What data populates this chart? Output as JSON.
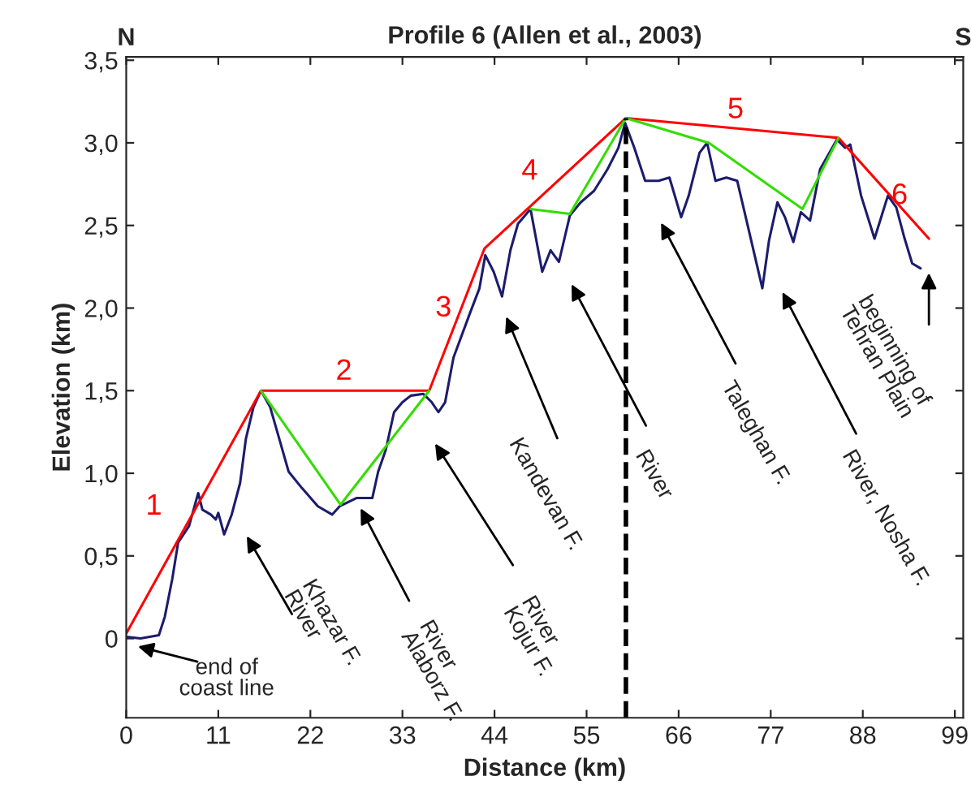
{
  "chart_data": {
    "type": "line",
    "title": "Profile 6 (Allen et al., 2003)",
    "xlabel": "Distance (km)",
    "ylabel": "Elevation (km)",
    "xlim": [
      0,
      100
    ],
    "ylim": [
      -0.48,
      3.52
    ],
    "xticks": [
      0,
      11,
      22,
      33,
      44,
      55,
      66,
      77,
      88,
      99
    ],
    "yticks": [
      0,
      {
        "value": 0.5,
        "label": "0,5"
      },
      {
        "value": 1.0,
        "label": "1,0"
      },
      {
        "value": 1.5,
        "label": "1,5"
      },
      {
        "value": 2.0,
        "label": "2,0"
      },
      {
        "value": 2.5,
        "label": "2,5"
      },
      {
        "value": 3.0,
        "label": "3,0"
      },
      {
        "value": 3.5,
        "label": "3,5"
      }
    ],
    "grid": false,
    "legend": false,
    "marker": "none",
    "series": [
      {
        "color": "#1c1c6e",
        "x": [
          0,
          1.7,
          3.9,
          4.6,
          5.5,
          6.2,
          7.5,
          8.6,
          9.1,
          10.1,
          10.7,
          11.0,
          11.7,
          12.6,
          13.6,
          14.3,
          15.2,
          16.1,
          17.2,
          18.5,
          19.4,
          21.0,
          22.9,
          24.6,
          25.5,
          27.5,
          29.4,
          30.1,
          31.0,
          32.0,
          33.0,
          34.0,
          35.5,
          36.5,
          37.3,
          38.1,
          39.1,
          41.0,
          42.2,
          42.9,
          43.9,
          44.9,
          45.9,
          46.8,
          48.3,
          49.7,
          50.7,
          51.7,
          53.0,
          54.3,
          55.9,
          57.5,
          58.8,
          59.6,
          60.7,
          62.0,
          63.6,
          64.9,
          66.3,
          67.2,
          68.5,
          69.4,
          70.4,
          71.7,
          73.0,
          74.2,
          76.0,
          76.8,
          77.8,
          78.7,
          79.7,
          80.6,
          81.7,
          82.9,
          84.9,
          85.9,
          86.5,
          87.8,
          89.4,
          91.0,
          92.0,
          93.0,
          93.9,
          94.9
        ],
        "values": [
          0.01,
          0.0,
          0.02,
          0.13,
          0.36,
          0.58,
          0.68,
          0.88,
          0.78,
          0.75,
          0.72,
          0.76,
          0.63,
          0.75,
          0.94,
          1.21,
          1.4,
          1.5,
          1.4,
          1.17,
          1.01,
          0.91,
          0.8,
          0.75,
          0.8,
          0.85,
          0.85,
          1.01,
          1.14,
          1.37,
          1.43,
          1.47,
          1.48,
          1.43,
          1.37,
          1.43,
          1.7,
          1.96,
          2.12,
          2.32,
          2.22,
          2.07,
          2.35,
          2.51,
          2.6,
          2.22,
          2.35,
          2.28,
          2.56,
          2.64,
          2.71,
          2.84,
          2.97,
          3.12,
          2.97,
          2.77,
          2.77,
          2.79,
          2.55,
          2.68,
          2.94,
          3.0,
          2.77,
          2.79,
          2.77,
          2.51,
          2.12,
          2.41,
          2.64,
          2.55,
          2.4,
          2.58,
          2.53,
          2.84,
          3.02,
          2.97,
          2.99,
          2.68,
          2.42,
          2.68,
          2.61,
          2.42,
          2.27,
          2.24
        ]
      },
      {
        "color": "#ff0000",
        "x": [
          0,
          16.1,
          36.2,
          42.8,
          59.7,
          85.1,
          95.9
        ],
        "values": [
          0.03,
          1.5,
          1.5,
          2.36,
          3.15,
          3.03,
          2.42
        ]
      },
      {
        "color": "#33dd00",
        "x": [
          16.1,
          25.6,
          36.2
        ],
        "values": [
          1.5,
          0.81,
          1.5
        ]
      },
      {
        "color": "#33dd00",
        "x": [
          48.3,
          53.0,
          59.7,
          69.6,
          80.8,
          85.1
        ],
        "values": [
          2.6,
          2.57,
          3.15,
          3.0,
          2.6,
          3.03
        ]
      }
    ],
    "ref_lines": [
      {
        "axis": "x",
        "value": 59.7,
        "color": "#000000",
        "line_style": "dashed"
      }
    ],
    "annotations": [
      "N",
      "S",
      "1",
      "2",
      "3",
      "4",
      "5",
      "6",
      "end of\ncoast line",
      "Khazar F.\nRiver",
      "River\nAlaborz F.",
      "River\nKojur F.",
      "Kandevan F.",
      "River",
      "Taleghan F.",
      "River, Nosha F.",
      "beginning of\nTehran Plain"
    ]
  }
}
